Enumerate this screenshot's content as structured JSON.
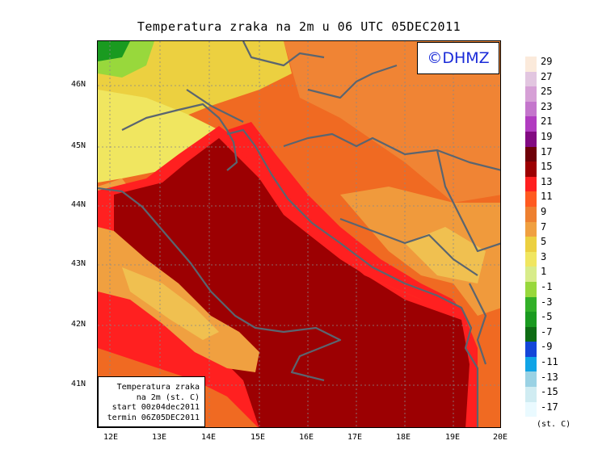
{
  "title": "Temperatura zraka na 2m u 06 UTC 05DEC2011",
  "watermark": "©DHMZ",
  "infobox": {
    "line1": "Temperatura zraka",
    "line2": "na 2m (st. C)",
    "line3": "start 00z04dec2011",
    "line4": "termin 06Z05DEC2011"
  },
  "lat_labels": [
    "46N",
    "45N",
    "44N",
    "43N",
    "42N",
    "41N"
  ],
  "lon_labels": [
    "12E",
    "13E",
    "14E",
    "15E",
    "16E",
    "17E",
    "18E",
    "19E",
    "20E"
  ],
  "legend": {
    "unit": "(st. C)",
    "labels": [
      "29",
      "27",
      "25",
      "23",
      "21",
      "19",
      "17",
      "15",
      "13",
      "11",
      "9",
      "7",
      "5",
      "3",
      "1",
      "-1",
      "-3",
      "-5",
      "-7",
      "-9",
      "-11",
      "-13",
      "-15",
      "-17"
    ],
    "colors": [
      "#fbeadb",
      "#e2c6e0",
      "#d6a0d6",
      "#c476cc",
      "#b13cc0",
      "#820a82",
      "#6e0008",
      "#9c0002",
      "#ff2020",
      "#ff5a20",
      "#ee8030",
      "#f0a040",
      "#ecd040",
      "#f0e660",
      "#d8ec8a",
      "#98d83c",
      "#32b028",
      "#1a9a20",
      "#0e6c14",
      "#1446d8",
      "#10a4e6",
      "#9ad2e4",
      "#d0ecf2",
      "#eafaff"
    ]
  }
}
